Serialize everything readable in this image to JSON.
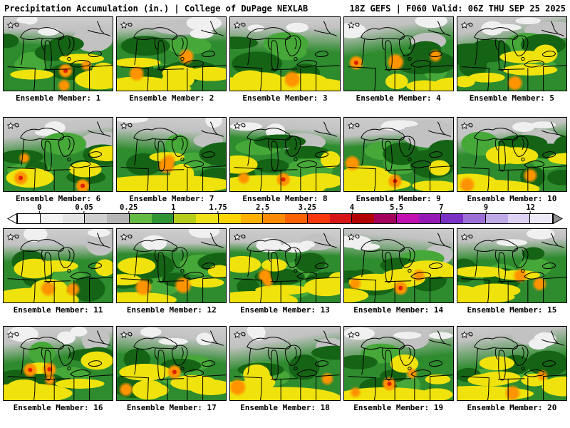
{
  "header": {
    "left": "Precipitation Accumulation (in.) | College of DuPage NEXLAB",
    "right": "18Z GEFS | F060 Valid: 06Z THU SEP 25 2025"
  },
  "panels": [
    {
      "member": 1,
      "label": "Ensemble Member: 1"
    },
    {
      "member": 2,
      "label": "Ensemble Member: 2"
    },
    {
      "member": 3,
      "label": "Ensemble Member: 3"
    },
    {
      "member": 4,
      "label": "Ensemble Member: 4"
    },
    {
      "member": 5,
      "label": "Ensemble Member: 5"
    },
    {
      "member": 6,
      "label": "Ensemble Member: 6"
    },
    {
      "member": 7,
      "label": "Ensemble Member: 7"
    },
    {
      "member": 8,
      "label": "Ensemble Member: 8"
    },
    {
      "member": 9,
      "label": "Ensemble Member: 9"
    },
    {
      "member": 10,
      "label": "Ensemble Member: 10"
    },
    {
      "member": 11,
      "label": "Ensemble Member: 11"
    },
    {
      "member": 12,
      "label": "Ensemble Member: 12"
    },
    {
      "member": 13,
      "label": "Ensemble Member: 13"
    },
    {
      "member": 14,
      "label": "Ensemble Member: 14"
    },
    {
      "member": 15,
      "label": "Ensemble Member: 15"
    },
    {
      "member": 16,
      "label": "Ensemble Member: 16"
    },
    {
      "member": 17,
      "label": "Ensemble Member: 17"
    },
    {
      "member": 18,
      "label": "Ensemble Member: 18"
    },
    {
      "member": 19,
      "label": "Ensemble Member: 19"
    },
    {
      "member": 20,
      "label": "Ensemble Member: 20"
    }
  ],
  "colorbar": {
    "ticks": [
      "0",
      "0.05",
      "0.25",
      "1",
      "1.75",
      "2.5",
      "3.25",
      "4",
      "5.5",
      "7",
      "9",
      "12"
    ],
    "segments": [
      "#ffffff",
      "#f4f4f4",
      "#e4e4e4",
      "#cfcfcf",
      "#b5b5b5",
      "#63bb44",
      "#2f9431",
      "#b5cc1a",
      "#eee21a",
      "#ffd400",
      "#ffb000",
      "#ff8c00",
      "#ff6200",
      "#f93810",
      "#d61616",
      "#b30000",
      "#a3005c",
      "#c10fb0",
      "#951ab5",
      "#7a2fc5",
      "#9b6fd6",
      "#bfa8e6",
      "#ded2f2",
      "#efeaf8"
    ],
    "arrow_left_color": "#ffffff",
    "arrow_right_color": "#8f8f8f"
  },
  "map_colors": {
    "base_green": "#2e8b2e",
    "light_green": "#46a838",
    "dark_green": "#156315",
    "yellow": "#f0e20c",
    "orange": "#ff9400",
    "red": "#dd2000",
    "gray_band": "#c2c2c2",
    "white_patch": "#f0f0f0"
  }
}
